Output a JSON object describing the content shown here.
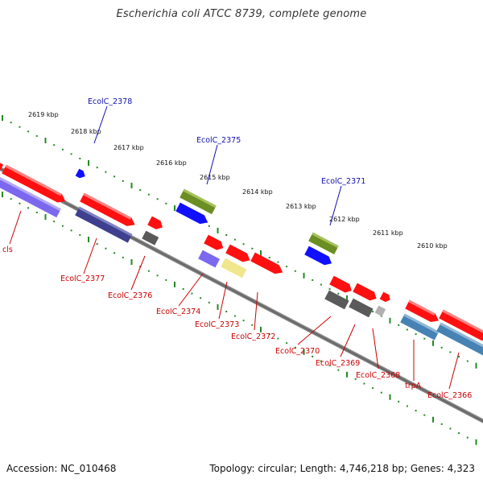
{
  "title": "Escherichia coli ATCC 8739, complete genome",
  "footer": {
    "accession": "Accession: NC_010468",
    "stats": "Topology: circular; Length: 4,746,218 bp; Genes: 4,323"
  },
  "scale_labels": [
    "2619 kbp",
    "2618 kbp",
    "2617 kbp",
    "2616 kbp",
    "2615 kbp",
    "2614 kbp",
    "2613 kbp",
    "2612 kbp",
    "2611 kbp",
    "2610 kbp"
  ],
  "gene_labels_top": [
    "EcolC_2378",
    "EcolC_2375",
    "EcolC_2371"
  ],
  "gene_labels_bottom": [
    "cls",
    "EcolC_2377",
    "EcolC_2376",
    "EcolC_2374",
    "EcolC_2373",
    "EcolC_2372",
    "EcolC_2370",
    "EcolC_2369",
    "EcolC_2368",
    "trpA",
    "EcolC_2366"
  ],
  "colors": {
    "backbone": "#808080",
    "forward_cds": "#ff1010",
    "blue_cds": "#1010ff",
    "olive_cds": "#6b8e23",
    "lavender": "#7b68ee",
    "navy": "#3f3f8f",
    "gray": "#5a5a5a",
    "pale_yellow": "#f0e68c",
    "steel_blue": "#4682b4",
    "light_gray": "#b0b0b0",
    "ticks": "#228b22",
    "label_top": "#1010b0",
    "label_bottom": "#cc0000"
  }
}
